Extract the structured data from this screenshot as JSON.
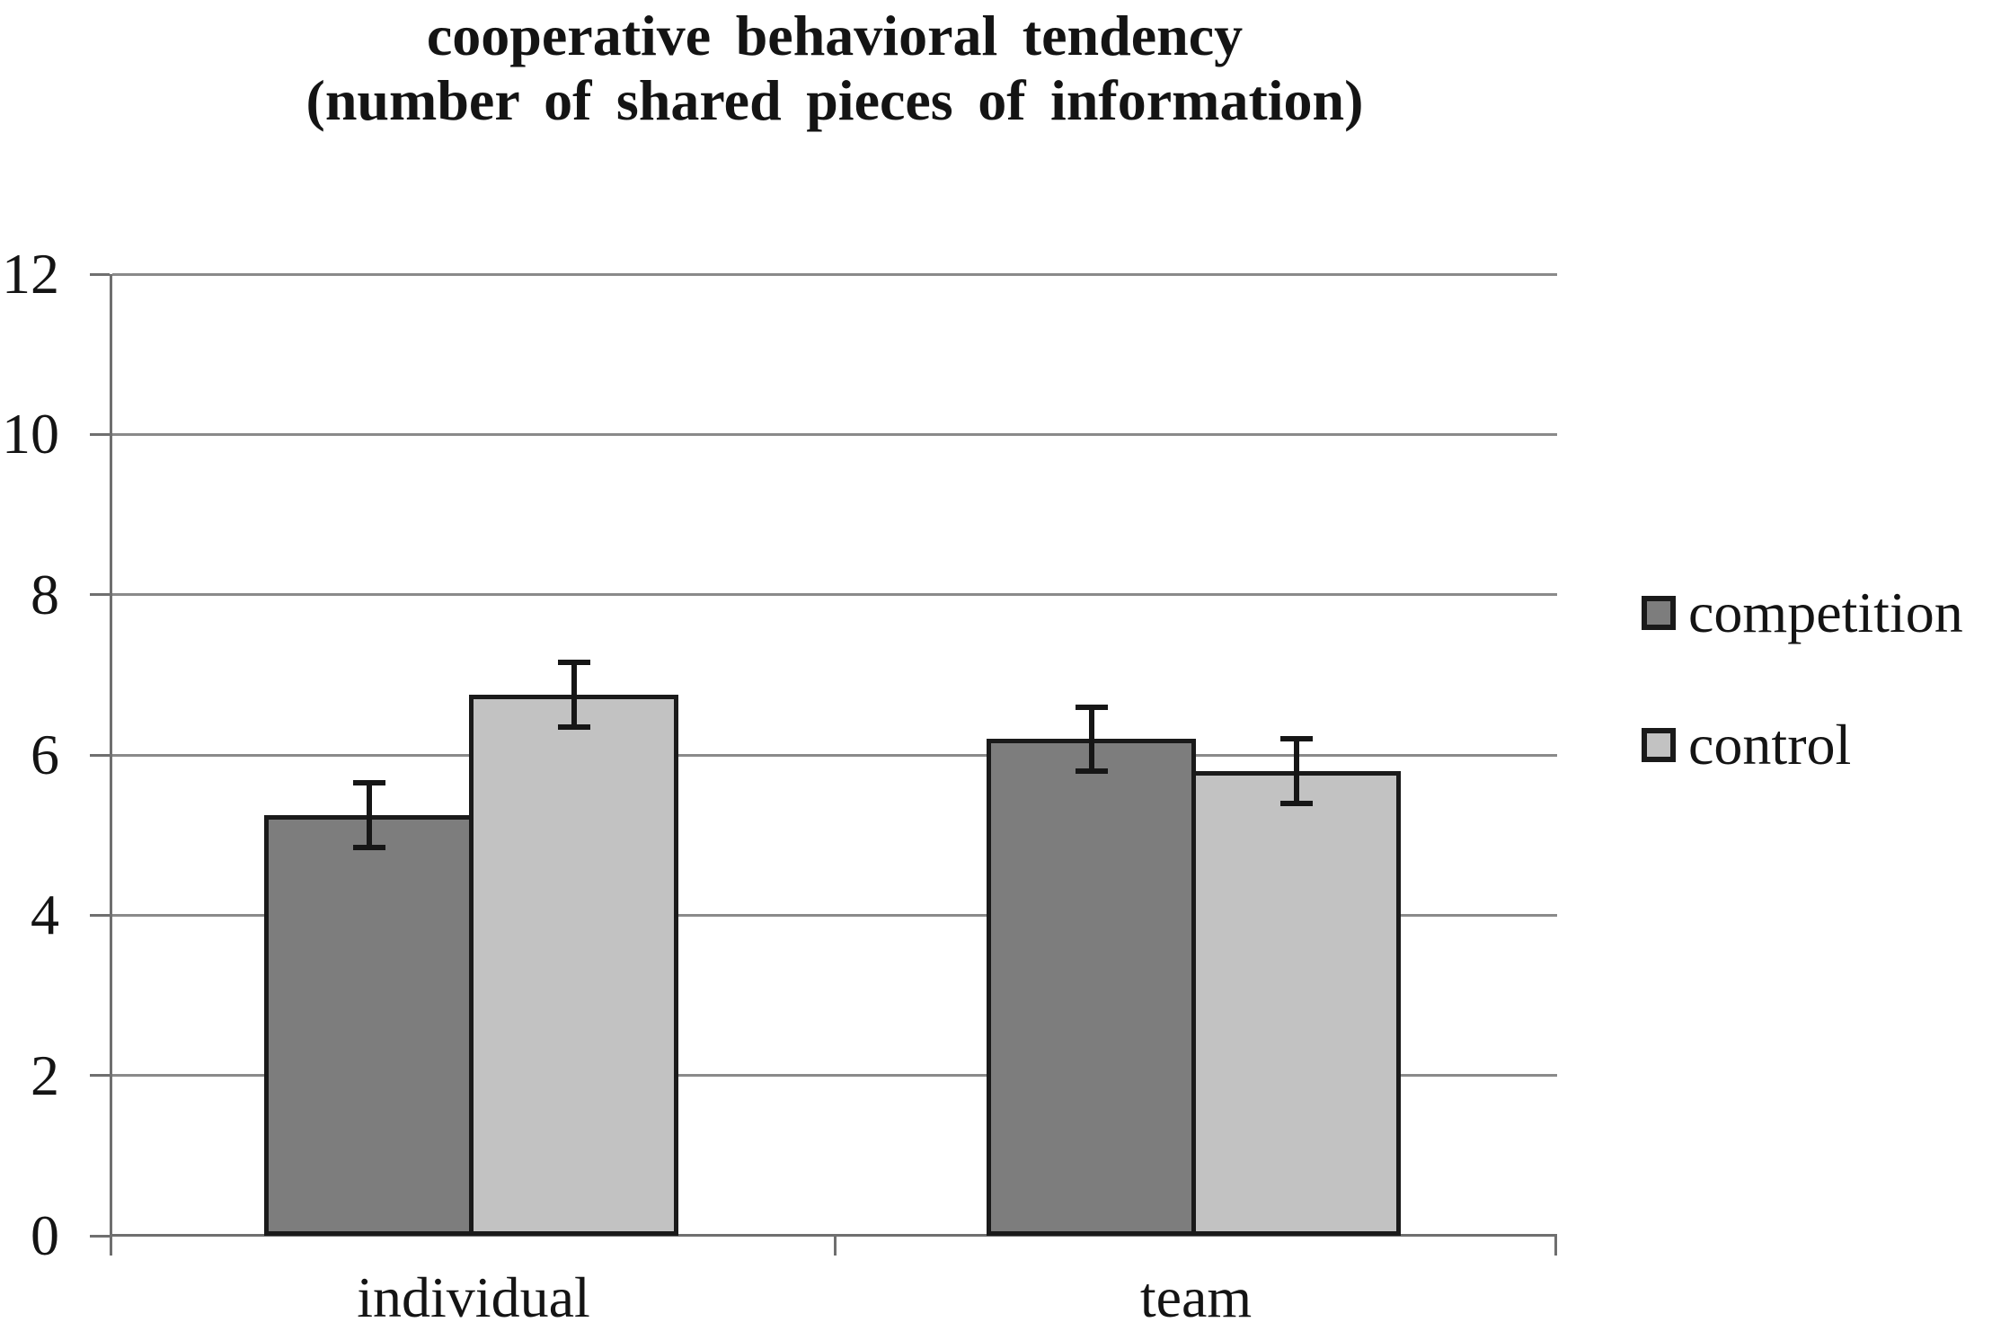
{
  "figure": {
    "title_line1": "cooperative behavioral tendency",
    "title_line2": "(number of shared pieces of information)"
  },
  "chart_data": {
    "type": "bar",
    "title": "cooperative behavioral tendency (number of shared pieces of information)",
    "categories": [
      "individual",
      "team"
    ],
    "series": [
      {
        "name": "competition",
        "values": [
          5.25,
          6.2
        ],
        "errors": [
          0.4,
          0.4
        ],
        "color": "#7d7d7d"
      },
      {
        "name": "control",
        "values": [
          6.75,
          5.8
        ],
        "errors": [
          0.4,
          0.4
        ],
        "color": "#c2c2c2"
      }
    ],
    "ylim": [
      0,
      12
    ],
    "yticks": [
      0,
      2,
      4,
      6,
      8,
      10,
      12
    ],
    "xlabel": "",
    "ylabel": "",
    "grid": true,
    "error_bars": true,
    "legend_position": "right",
    "style": {
      "bar_border_color": "#1a1a1a",
      "gridline_color": "#8a8a8a",
      "axis_color": "#6f6f6f",
      "error_bar_color": "#161616",
      "text_color": "#141414",
      "background_color": "#ffffff"
    }
  }
}
